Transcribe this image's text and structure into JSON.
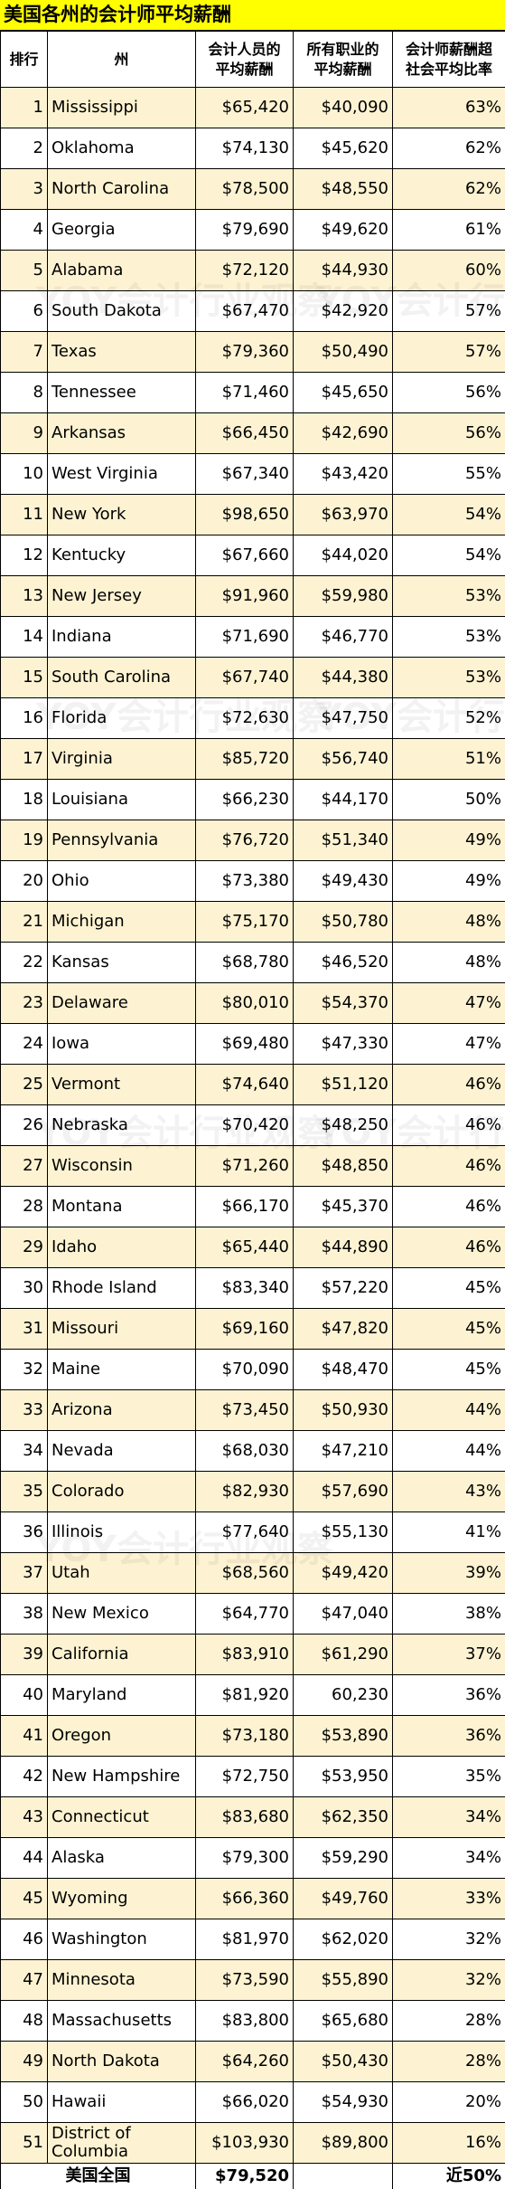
{
  "title": "美国各州的会计师平均薪酬",
  "watermark": "YOY会计行业观察",
  "table": {
    "headers": [
      [
        "排行"
      ],
      [
        "州"
      ],
      [
        "会计人员的",
        "平均薪酬"
      ],
      [
        "所有职业的",
        "平均薪酬"
      ],
      [
        "会计师薪酬超",
        "社会平均比率"
      ]
    ],
    "rows": [
      [
        "1",
        "Mississippi",
        "$65,420",
        "$40,090",
        "63%"
      ],
      [
        "2",
        "Oklahoma",
        "$74,130",
        "$45,620",
        "62%"
      ],
      [
        "3",
        "North Carolina",
        "$78,500",
        "$48,550",
        "62%"
      ],
      [
        "4",
        "Georgia",
        "$79,690",
        "$49,620",
        "61%"
      ],
      [
        "5",
        "Alabama",
        "$72,120",
        "$44,930",
        "60%"
      ],
      [
        "6",
        "South Dakota",
        "$67,470",
        "$42,920",
        "57%"
      ],
      [
        "7",
        "Texas",
        "$79,360",
        "$50,490",
        "57%"
      ],
      [
        "8",
        "Tennessee",
        "$71,460",
        "$45,650",
        "56%"
      ],
      [
        "9",
        "Arkansas",
        "$66,450",
        "$42,690",
        "56%"
      ],
      [
        "10",
        "West Virginia",
        "$67,340",
        "$43,420",
        "55%"
      ],
      [
        "11",
        "New York",
        "$98,650",
        "$63,970",
        "54%"
      ],
      [
        "12",
        "Kentucky",
        "$67,660",
        "$44,020",
        "54%"
      ],
      [
        "13",
        "New Jersey",
        "$91,960",
        "$59,980",
        "53%"
      ],
      [
        "14",
        "Indiana",
        "$71,690",
        "$46,770",
        "53%"
      ],
      [
        "15",
        "South Carolina",
        "$67,740",
        "$44,380",
        "53%"
      ],
      [
        "16",
        "Florida",
        "$72,630",
        "$47,750",
        "52%"
      ],
      [
        "17",
        "Virginia",
        "$85,720",
        "$56,740",
        "51%"
      ],
      [
        "18",
        "Louisiana",
        "$66,230",
        "$44,170",
        "50%"
      ],
      [
        "19",
        "Pennsylvania",
        "$76,720",
        "$51,340",
        "49%"
      ],
      [
        "20",
        "Ohio",
        "$73,380",
        "$49,430",
        "49%"
      ],
      [
        "21",
        "Michigan",
        "$75,170",
        "$50,780",
        "48%"
      ],
      [
        "22",
        "Kansas",
        "$68,780",
        "$46,520",
        "48%"
      ],
      [
        "23",
        "Delaware",
        "$80,010",
        "$54,370",
        "47%"
      ],
      [
        "24",
        "Iowa",
        "$69,480",
        "$47,330",
        "47%"
      ],
      [
        "25",
        "Vermont",
        "$74,640",
        "$51,120",
        "46%"
      ],
      [
        "26",
        "Nebraska",
        "$70,420",
        "$48,250",
        "46%"
      ],
      [
        "27",
        "Wisconsin",
        "$71,260",
        "$48,850",
        "46%"
      ],
      [
        "28",
        "Montana",
        "$66,170",
        "$45,370",
        "46%"
      ],
      [
        "29",
        "Idaho",
        "$65,440",
        "$44,890",
        "46%"
      ],
      [
        "30",
        "Rhode Island",
        "$83,340",
        "$57,220",
        "45%"
      ],
      [
        "31",
        "Missouri",
        "$69,160",
        "$47,820",
        "45%"
      ],
      [
        "32",
        "Maine",
        "$70,090",
        "$48,470",
        "45%"
      ],
      [
        "33",
        "Arizona",
        "$73,450",
        "$50,930",
        "44%"
      ],
      [
        "34",
        "Nevada",
        "$68,030",
        "$47,210",
        "44%"
      ],
      [
        "35",
        "Colorado",
        "$82,930",
        "$57,690",
        "43%"
      ],
      [
        "36",
        "Illinois",
        "$77,640",
        "$55,130",
        "41%"
      ],
      [
        "37",
        "Utah",
        "$68,560",
        "$49,420",
        "39%"
      ],
      [
        "38",
        "New Mexico",
        "$64,770",
        "$47,040",
        "38%"
      ],
      [
        "39",
        "California",
        "$83,910",
        "$61,290",
        "37%"
      ],
      [
        "40",
        "Maryland",
        "$81,920",
        "60,230",
        "36%"
      ],
      [
        "41",
        "Oregon",
        "$73,180",
        "$53,890",
        "36%"
      ],
      [
        "42",
        "New Hampshire",
        "$72,750",
        "$53,950",
        "35%"
      ],
      [
        "43",
        "Connecticut",
        "$83,680",
        "$62,350",
        "34%"
      ],
      [
        "44",
        "Alaska",
        "$79,300",
        "$59,290",
        "34%"
      ],
      [
        "45",
        "Wyoming",
        "$66,360",
        "$49,760",
        "33%"
      ],
      [
        "46",
        "Washington",
        "$81,970",
        "$62,020",
        "32%"
      ],
      [
        "47",
        "Minnesota",
        "$73,590",
        "$55,890",
        "32%"
      ],
      [
        "48",
        "Massachusetts",
        "$83,800",
        "$65,680",
        "28%"
      ],
      [
        "49",
        "North Dakota",
        "$64,260",
        "$50,430",
        "28%"
      ],
      [
        "50",
        "Hawaii",
        "$66,020",
        "$54,930",
        "20%"
      ],
      [
        "51",
        "District of Columbia",
        "$103,930",
        "$89,800",
        "16%"
      ]
    ],
    "footer": [
      "美国全国",
      "$79,520",
      "近50%"
    ]
  }
}
